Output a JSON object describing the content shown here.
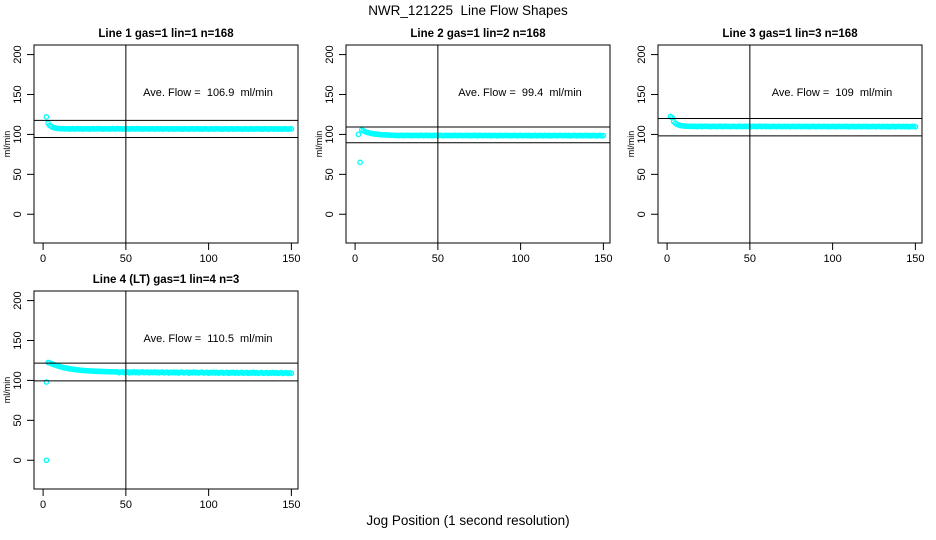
{
  "page": {
    "title": "NWR_121225  Line Flow Shapes",
    "xlabel": "Jog Position (1 second resolution)",
    "background": "#ffffff",
    "point_color": "#00ffff",
    "axis_color": "#000000"
  },
  "chart_data": [
    {
      "type": "scatter",
      "title": "Line 1 gas=1 lin=1 n=168",
      "annotation": "Ave. Flow =  106.9  ml/min",
      "ave_flow_ml_min": 106.9,
      "ylabel": "ml/min",
      "grid": {
        "row": 0,
        "col": 0
      },
      "xlim": [
        -5.5,
        154
      ],
      "ylim": [
        -36,
        212
      ],
      "xticks": [
        0,
        50,
        100,
        150
      ],
      "yticks": [
        0,
        50,
        100,
        150,
        200
      ],
      "vline_x": 50,
      "hlines": [
        117.6,
        96.2
      ],
      "series": {
        "name": "flow",
        "marker": "open-circle",
        "segments": [
          {
            "type": "points",
            "pts": [
              [
                2,
                122
              ]
            ]
          },
          {
            "type": "decay",
            "x0": 3,
            "x1": 14,
            "step": 1,
            "from": 114,
            "to": 107,
            "tau": 2.2
          },
          {
            "type": "flat",
            "x0": 15,
            "x1": 150,
            "step": 1,
            "base": 107,
            "end": 106.8,
            "jitter": [
              0.2,
              -0.3,
              0.1,
              0.3,
              -0.2,
              0,
              0.3,
              -0.1,
              0.2,
              -0.3,
              0,
              0.1
            ]
          }
        ]
      }
    },
    {
      "type": "scatter",
      "title": "Line 2 gas=1 lin=2 n=168",
      "annotation": "Ave. Flow =  99.4  ml/min",
      "ave_flow_ml_min": 99.4,
      "ylabel": "ml/min",
      "grid": {
        "row": 0,
        "col": 1
      },
      "xlim": [
        -5.5,
        154
      ],
      "ylim": [
        -36,
        212
      ],
      "xticks": [
        0,
        50,
        100,
        150
      ],
      "yticks": [
        0,
        50,
        100,
        150,
        200
      ],
      "vline_x": 50,
      "hlines": [
        109.3,
        89.5
      ],
      "series": {
        "name": "flow",
        "marker": "open-circle",
        "segments": [
          {
            "type": "points",
            "pts": [
              [
                2,
                100
              ],
              [
                3,
                65
              ]
            ]
          },
          {
            "type": "decay",
            "x0": 4,
            "x1": 24,
            "step": 1,
            "from": 105.5,
            "to": 98.7,
            "tau": 6
          },
          {
            "type": "flat",
            "x0": 25,
            "x1": 150,
            "step": 1,
            "base": 98.7,
            "end": 98.5,
            "jitter": [
              0.2,
              -0.3,
              0.1,
              0.3,
              -0.2,
              0,
              0.3,
              -0.1,
              0.2,
              -0.3,
              0,
              0.1
            ]
          }
        ]
      }
    },
    {
      "type": "scatter",
      "title": "Line 3 gas=1 lin=3 n=168",
      "annotation": "Ave. Flow =  109  ml/min",
      "ave_flow_ml_min": 109,
      "ylabel": "ml/min",
      "grid": {
        "row": 0,
        "col": 2
      },
      "xlim": [
        -5.5,
        154
      ],
      "ylim": [
        -36,
        212
      ],
      "xticks": [
        0,
        50,
        100,
        150
      ],
      "yticks": [
        0,
        50,
        100,
        150,
        200
      ],
      "vline_x": 50,
      "hlines": [
        119.9,
        98.1
      ],
      "series": {
        "name": "flow",
        "marker": "open-circle",
        "segments": [
          {
            "type": "points",
            "pts": [
              [
                2,
                122.5
              ],
              [
                3,
                121
              ]
            ]
          },
          {
            "type": "decay",
            "x0": 4,
            "x1": 16,
            "step": 1,
            "from": 116,
            "to": 110,
            "tau": 2.5
          },
          {
            "type": "flat",
            "x0": 17,
            "x1": 150,
            "step": 1,
            "base": 110,
            "end": 109.8,
            "jitter": [
              0.2,
              -0.3,
              0.1,
              0.3,
              -0.2,
              0,
              0.3,
              -0.1,
              0.2,
              -0.3,
              0,
              0.1
            ]
          }
        ]
      }
    },
    {
      "type": "scatter",
      "title": "Line 4 (LT) gas=1 lin=4 n=3",
      "annotation": "Ave. Flow =  110.5  ml/min",
      "ave_flow_ml_min": 110.5,
      "ylabel": "ml/min",
      "grid": {
        "row": 1,
        "col": 0
      },
      "xlim": [
        -5.5,
        154
      ],
      "ylim": [
        -36,
        212
      ],
      "xticks": [
        0,
        50,
        100,
        150
      ],
      "yticks": [
        0,
        50,
        100,
        150,
        200
      ],
      "vline_x": 50,
      "hlines": [
        121.6,
        99.5
      ],
      "series": {
        "name": "flow",
        "marker": "open-circle",
        "segments": [
          {
            "type": "points",
            "pts": [
              [
                2,
                98
              ],
              [
                2,
                0
              ],
              [
                3,
                122.5
              ]
            ]
          },
          {
            "type": "decay",
            "x0": 4,
            "x1": 44,
            "step": 1,
            "from": 122,
            "to": 110.3,
            "tau": 12
          },
          {
            "type": "flat",
            "x0": 45,
            "x1": 150,
            "step": 1,
            "base": 110.2,
            "end": 109.2,
            "jitter": [
              0.4,
              -0.5,
              0.2,
              0.6,
              -0.4,
              0,
              0.5,
              -0.6,
              0.3,
              -0.2,
              0.6,
              -0.3
            ]
          }
        ]
      }
    }
  ]
}
